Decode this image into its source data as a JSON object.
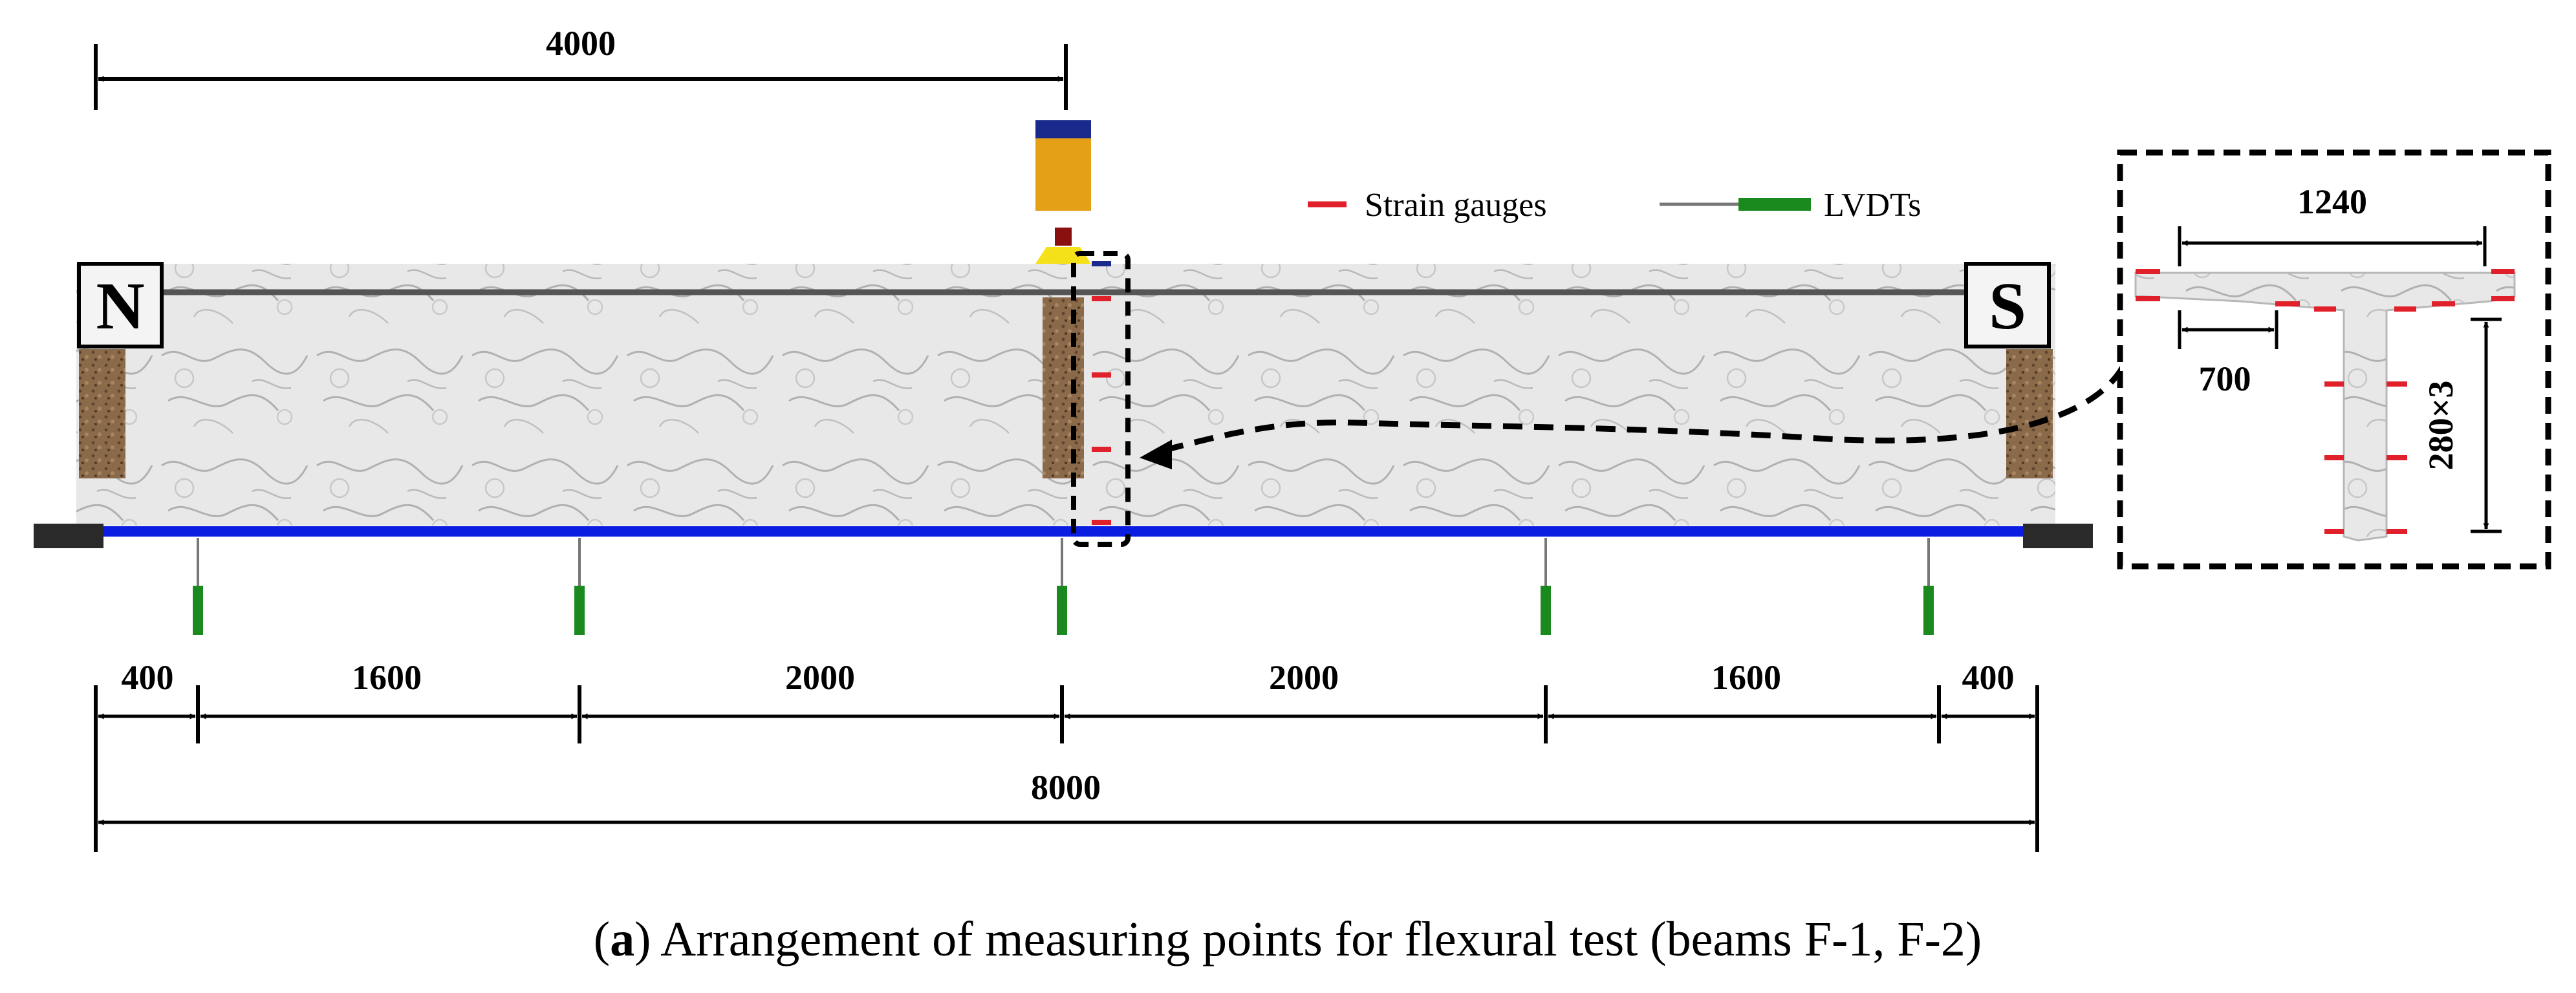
{
  "labels": {
    "ends": {
      "north": "N",
      "south": "S"
    },
    "legend": {
      "strain_gauges": "Strain gauges",
      "lvdts": "LVDTs"
    },
    "top_dimension": "4000",
    "bottom_dimensions": [
      "400",
      "1600",
      "2000",
      "2000",
      "1600",
      "400"
    ],
    "total_span": "8000",
    "section": {
      "flange_width": "1240",
      "flange_offset": "700",
      "web_spacing": "280×3"
    },
    "caption": {
      "prefix": "(",
      "letter": "a",
      "text": ") Arrangement of measuring points for flexural test (beams F-1, F-2)"
    }
  },
  "colors": {
    "strain_gauge": "#e0212b",
    "lvdt": "#1a8a1f",
    "bottom_rebar": "#0a1de0",
    "load_cylinder": "#e4a017",
    "load_cap": "#1a2a8c",
    "load_pin": "#8a0f0f",
    "load_plate": "#f5e11a",
    "support_pad": "#8b6a4a",
    "concrete": "#e7e7e7"
  }
}
